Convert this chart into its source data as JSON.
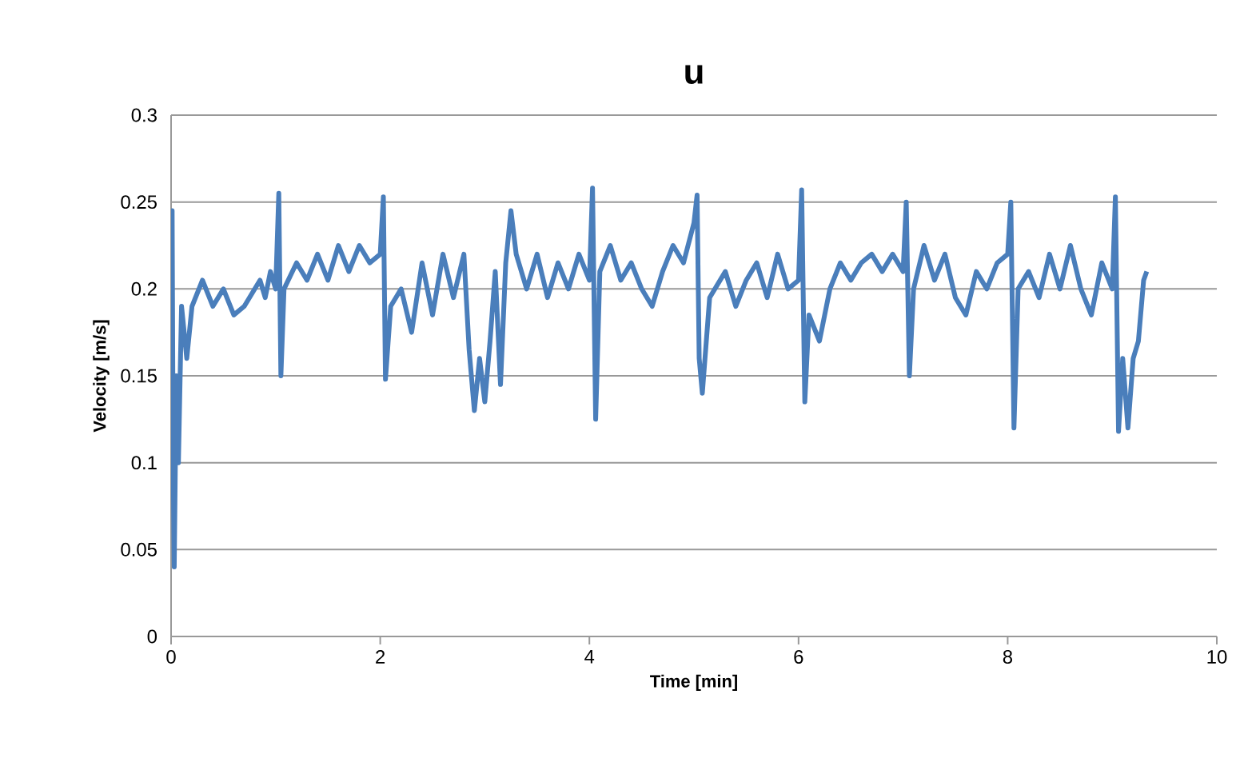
{
  "chart_data": {
    "type": "line",
    "title": "u",
    "xlabel": "Time [min]",
    "ylabel": "Velocity [m/s]",
    "xlim": [
      0,
      10
    ],
    "xticks": [
      0,
      2,
      4,
      6,
      8,
      10
    ],
    "ylim": [
      0,
      0.3
    ],
    "yticks": [
      0,
      0.05,
      0.1,
      0.15,
      0.2,
      0.25,
      0.3
    ],
    "grid": "y",
    "series": [
      {
        "color": "#4a7ebb",
        "x": [
          0.0,
          0.01,
          0.02,
          0.03,
          0.05,
          0.07,
          0.1,
          0.15,
          0.2,
          0.3,
          0.4,
          0.5,
          0.6,
          0.7,
          0.8,
          0.85,
          0.9,
          0.95,
          1.0,
          1.03,
          1.05,
          1.08,
          1.2,
          1.3,
          1.4,
          1.5,
          1.6,
          1.7,
          1.8,
          1.9,
          2.0,
          2.03,
          2.05,
          2.1,
          2.2,
          2.3,
          2.4,
          2.5,
          2.6,
          2.7,
          2.8,
          2.85,
          2.9,
          2.95,
          3.0,
          3.05,
          3.1,
          3.15,
          3.2,
          3.25,
          3.3,
          3.4,
          3.5,
          3.6,
          3.7,
          3.8,
          3.9,
          4.0,
          4.03,
          4.06,
          4.1,
          4.2,
          4.3,
          4.4,
          4.5,
          4.6,
          4.7,
          4.8,
          4.9,
          5.0,
          5.03,
          5.05,
          5.08,
          5.15,
          5.3,
          5.4,
          5.5,
          5.6,
          5.7,
          5.8,
          5.9,
          6.0,
          6.03,
          6.06,
          6.1,
          6.2,
          6.3,
          6.4,
          6.5,
          6.6,
          6.7,
          6.8,
          6.9,
          7.0,
          7.03,
          7.06,
          7.1,
          7.2,
          7.3,
          7.4,
          7.5,
          7.6,
          7.7,
          7.8,
          7.9,
          8.0,
          8.03,
          8.06,
          8.1,
          8.2,
          8.3,
          8.4,
          8.5,
          8.6,
          8.7,
          8.8,
          8.9,
          9.0,
          9.03,
          9.06,
          9.1,
          9.15,
          9.2,
          9.25,
          9.3,
          9.33
        ],
        "values": [
          0.19,
          0.245,
          0.1,
          0.04,
          0.15,
          0.1,
          0.19,
          0.16,
          0.19,
          0.205,
          0.19,
          0.2,
          0.185,
          0.19,
          0.2,
          0.205,
          0.195,
          0.21,
          0.2,
          0.255,
          0.15,
          0.2,
          0.215,
          0.205,
          0.22,
          0.205,
          0.225,
          0.21,
          0.225,
          0.215,
          0.22,
          0.253,
          0.148,
          0.19,
          0.2,
          0.175,
          0.215,
          0.185,
          0.22,
          0.195,
          0.22,
          0.165,
          0.13,
          0.16,
          0.135,
          0.17,
          0.21,
          0.145,
          0.215,
          0.245,
          0.22,
          0.2,
          0.22,
          0.195,
          0.215,
          0.2,
          0.22,
          0.205,
          0.258,
          0.125,
          0.21,
          0.225,
          0.205,
          0.215,
          0.2,
          0.19,
          0.21,
          0.225,
          0.215,
          0.238,
          0.254,
          0.16,
          0.14,
          0.195,
          0.21,
          0.19,
          0.205,
          0.215,
          0.195,
          0.22,
          0.2,
          0.205,
          0.257,
          0.135,
          0.185,
          0.17,
          0.2,
          0.215,
          0.205,
          0.215,
          0.22,
          0.21,
          0.22,
          0.21,
          0.25,
          0.15,
          0.2,
          0.225,
          0.205,
          0.22,
          0.195,
          0.185,
          0.21,
          0.2,
          0.215,
          0.22,
          0.25,
          0.12,
          0.2,
          0.21,
          0.195,
          0.22,
          0.2,
          0.225,
          0.2,
          0.185,
          0.215,
          0.2,
          0.253,
          0.118,
          0.16,
          0.12,
          0.16,
          0.17,
          0.205,
          0.21
        ]
      }
    ]
  }
}
